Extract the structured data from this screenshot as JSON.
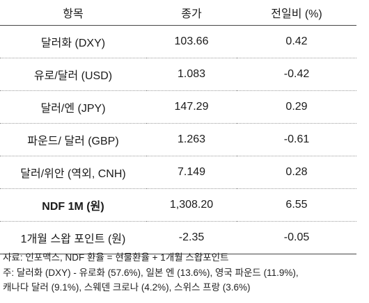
{
  "table": {
    "headers": [
      "항목",
      "종가",
      "전일비 (%)"
    ],
    "rows": [
      {
        "name": "달러화 (DXY)",
        "close": "103.66",
        "change": "0.42",
        "bold": false
      },
      {
        "name": "유로/달러 (USD)",
        "close": "1.083",
        "change": "-0.42",
        "bold": false
      },
      {
        "name": "달러/엔 (JPY)",
        "close": "147.29",
        "change": "0.29",
        "bold": false
      },
      {
        "name": "파운드/ 달러 (GBP)",
        "close": "1.263",
        "change": "-0.61",
        "bold": false
      },
      {
        "name": "달러/위안 (역외, CNH)",
        "close": "7.149",
        "change": "0.28",
        "bold": false
      },
      {
        "name": "NDF 1M (원)",
        "close": "1,308.20",
        "change": "6.55",
        "bold": true
      },
      {
        "name": "1개월 스왑 포인트 (원)",
        "close": "-2.35",
        "change": "-0.05",
        "bold": false
      }
    ]
  },
  "notes": [
    "자료: 인포맥스, NDF 환율 = 현물환율 + 1개월 스왑포인트",
    "주: 달러화 (DXY) - 유로화 (57.6%), 일본 엔 (13.6%), 영국 파운드 (11.9%),",
    "캐나다 달러 (9.1%), 스웨덴 크로나 (4.2%), 스위스 프랑 (3.6%)"
  ]
}
